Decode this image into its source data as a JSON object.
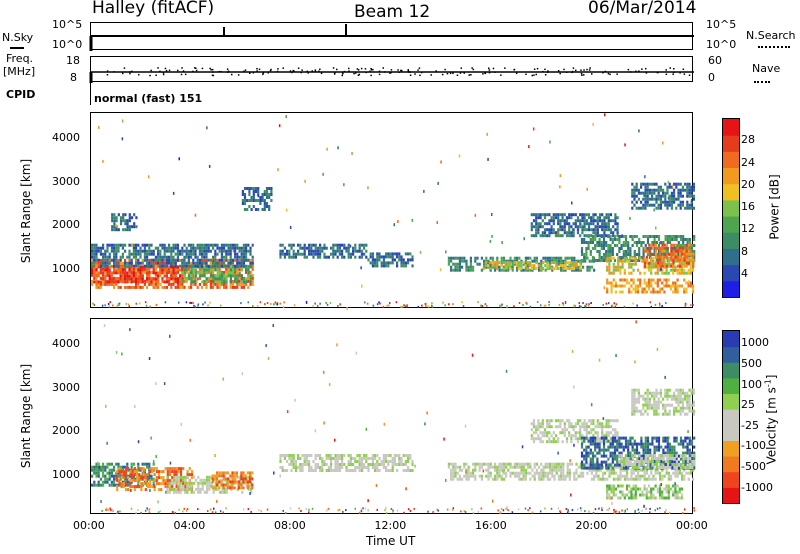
{
  "header": {
    "station": "Halley (fitACF)",
    "beam": "Beam 12",
    "date": "06/Mar/2014"
  },
  "top_panels": {
    "nsky_label": "N.Sky",
    "nsearch_label": "N.Search",
    "nsky_ticks": [
      "10^5",
      "10^0"
    ],
    "nsearch_ticks": [
      "10^5",
      "10^0"
    ],
    "freq_label_1": "Freq.",
    "freq_label_2": "[MHz]",
    "freq_ticks": [
      "18",
      "8"
    ],
    "nave_label": "Nave",
    "nave_ticks": [
      "60",
      "0"
    ],
    "cpid_label": "CPID",
    "cpid_text": "normal (fast) 151"
  },
  "colors": {
    "power_scale": [
      "#1e1ee6",
      "#2a48b4",
      "#2f6f8c",
      "#3c8c64",
      "#4fa450",
      "#7cc24a",
      "#f0c020",
      "#f09a20",
      "#f06a20",
      "#e63c1e",
      "#e61414"
    ],
    "velocity_scale": [
      "#e61414",
      "#f0441e",
      "#f07a20",
      "#f0a020",
      "#c8c8c0",
      "#c8c8c0",
      "#8fd050",
      "#4fb040",
      "#3c8c64",
      "#2f5f9c",
      "#2a3cb4"
    ]
  },
  "chart_data": [
    {
      "type": "heatmap",
      "name": "power",
      "ylabel": "Slant Range [km]",
      "ylim": [
        100,
        4600
      ],
      "yticks": [
        "4000",
        "3000",
        "2000",
        "1000"
      ],
      "xlim": [
        0,
        24
      ],
      "colorbar_label": "Power [dB]",
      "colorbar_ticks": [
        "28",
        "24",
        "20",
        "16",
        "12",
        "8",
        "4"
      ],
      "colorbar_range": [
        0,
        32
      ],
      "regions": [
        {
          "t0": 0.0,
          "t1": 6.4,
          "r0": 600,
          "r1": 1250,
          "level": 24
        },
        {
          "t0": 0.0,
          "t1": 3.6,
          "r0": 700,
          "r1": 1100,
          "level": 30
        },
        {
          "t0": 3.6,
          "t1": 6.4,
          "r0": 700,
          "r1": 1100,
          "level": 12
        },
        {
          "t0": 0.0,
          "t1": 6.4,
          "r0": 1100,
          "r1": 1600,
          "level": 6
        },
        {
          "t0": 0.8,
          "t1": 1.8,
          "r0": 1900,
          "r1": 2300,
          "level": 6
        },
        {
          "t0": 6.0,
          "t1": 7.2,
          "r0": 2400,
          "r1": 2900,
          "level": 6
        },
        {
          "t0": 7.5,
          "t1": 11.0,
          "r0": 1300,
          "r1": 1600,
          "level": 6
        },
        {
          "t0": 11.0,
          "t1": 12.8,
          "r0": 1100,
          "r1": 1400,
          "level": 6
        },
        {
          "t0": 14.2,
          "t1": 20.0,
          "r0": 1000,
          "r1": 1300,
          "level": 10
        },
        {
          "t0": 15.5,
          "t1": 19.5,
          "r0": 1050,
          "r1": 1200,
          "level": 20
        },
        {
          "t0": 17.5,
          "t1": 21.0,
          "r0": 1800,
          "r1": 2300,
          "level": 6
        },
        {
          "t0": 19.5,
          "t1": 24.0,
          "r0": 1200,
          "r1": 1800,
          "level": 10
        },
        {
          "t0": 20.5,
          "t1": 24.0,
          "r0": 900,
          "r1": 1300,
          "level": 18
        },
        {
          "t0": 22.0,
          "t1": 24.0,
          "r0": 1100,
          "r1": 1600,
          "level": 24
        },
        {
          "t0": 20.5,
          "t1": 24.0,
          "r0": 500,
          "r1": 800,
          "level": 22
        },
        {
          "t0": 21.5,
          "t1": 24.0,
          "r0": 2400,
          "r1": 3000,
          "level": 6
        }
      ]
    },
    {
      "type": "heatmap",
      "name": "velocity",
      "ylabel": "Slant Range [km]",
      "xlabel": "Time UT",
      "ylim": [
        100,
        4600
      ],
      "yticks": [
        "4000",
        "3000",
        "2000",
        "1000"
      ],
      "xlim": [
        0,
        24
      ],
      "xticks": [
        "00:00",
        "04:00",
        "08:00",
        "12:00",
        "16:00",
        "20:00",
        "00:00"
      ],
      "colorbar_label": "Velocity [m s",
      "colorbar_label_exp": "-1",
      "colorbar_label_end": "]",
      "colorbar_ticks": [
        "1000",
        "500",
        "100",
        "25",
        "-25",
        "-100",
        "-500",
        "-1000"
      ],
      "regions": [
        {
          "t0": 0.0,
          "t1": 2.5,
          "r0": 800,
          "r1": 1300,
          "level": 8
        },
        {
          "t0": 1.0,
          "t1": 4.0,
          "r0": 700,
          "r1": 1200,
          "level": 2
        },
        {
          "t0": 3.0,
          "t1": 6.4,
          "r0": 600,
          "r1": 1000,
          "level": 5
        },
        {
          "t0": 4.8,
          "t1": 6.4,
          "r0": 700,
          "r1": 1100,
          "level": 2
        },
        {
          "t0": 7.5,
          "t1": 12.8,
          "r0": 1100,
          "r1": 1500,
          "level": 5
        },
        {
          "t0": 14.2,
          "t1": 24.0,
          "r0": 900,
          "r1": 1300,
          "level": 5
        },
        {
          "t0": 17.5,
          "t1": 21.0,
          "r0": 1800,
          "r1": 2300,
          "level": 5
        },
        {
          "t0": 19.5,
          "t1": 24.0,
          "r0": 1200,
          "r1": 1900,
          "level": 9
        },
        {
          "t0": 21.0,
          "t1": 24.0,
          "r0": 1200,
          "r1": 1500,
          "level": 5
        },
        {
          "t0": 20.5,
          "t1": 23.5,
          "r0": 500,
          "r1": 800,
          "level": 6
        },
        {
          "t0": 21.5,
          "t1": 24.0,
          "r0": 2400,
          "r1": 3000,
          "level": 5
        }
      ]
    }
  ]
}
